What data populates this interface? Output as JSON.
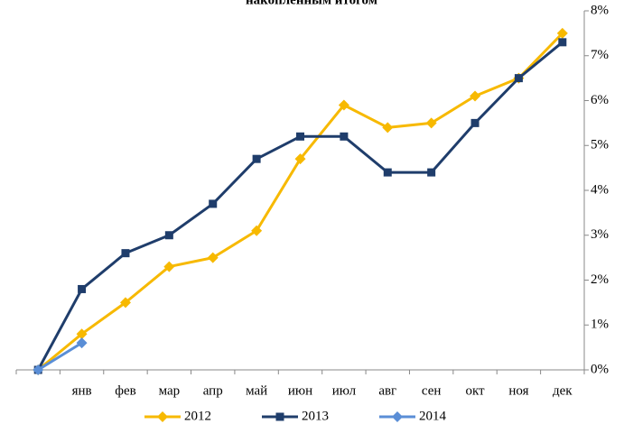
{
  "chart_data": {
    "type": "line",
    "title": "накопленным итогом",
    "categories": [
      null,
      "янв",
      "фев",
      "мар",
      "апр",
      "май",
      "июн",
      "июл",
      "авг",
      "сен",
      "окт",
      "ноя",
      "дек"
    ],
    "series": [
      {
        "name": "2012",
        "color": "#f7b900",
        "marker": "diamond",
        "values": [
          0,
          0.8,
          1.5,
          2.3,
          2.5,
          3.1,
          4.7,
          5.9,
          5.4,
          5.5,
          6.1,
          6.5,
          7.5
        ]
      },
      {
        "name": "2013",
        "color": "#1f3d6b",
        "marker": "square",
        "values": [
          0,
          1.8,
          2.6,
          3.0,
          3.7,
          4.7,
          5.2,
          5.2,
          4.4,
          4.4,
          5.5,
          6.5,
          7.3
        ]
      },
      {
        "name": "2014",
        "color": "#5a8ed6",
        "marker": "diamond",
        "values": [
          0,
          0.6,
          null,
          null,
          null,
          null,
          null,
          null,
          null,
          null,
          null,
          null,
          null
        ]
      }
    ],
    "ylim": [
      0,
      8
    ],
    "yticks": [
      {
        "value": 0,
        "label": "0%"
      },
      {
        "value": 1,
        "label": "1%"
      },
      {
        "value": 2,
        "label": "2%"
      },
      {
        "value": 3,
        "label": "3%"
      },
      {
        "value": 4,
        "label": "4%"
      },
      {
        "value": 5,
        "label": "5%"
      },
      {
        "value": 6,
        "label": "6%"
      },
      {
        "value": 7,
        "label": "7%"
      },
      {
        "value": 8,
        "label": "8%"
      }
    ],
    "grid": false
  }
}
